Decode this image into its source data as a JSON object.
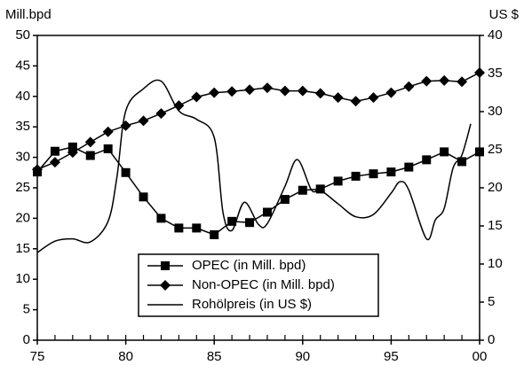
{
  "chart_data": {
    "type": "line",
    "y_label": "Mill.bpd",
    "y2_label": "US $",
    "x": [
      75,
      76,
      77,
      78,
      79,
      80,
      81,
      82,
      83,
      84,
      85,
      86,
      87,
      88,
      89,
      90,
      91,
      92,
      93,
      94,
      95,
      96,
      97,
      98,
      99,
      100
    ],
    "xlim": [
      75,
      100
    ],
    "xticks": [
      75,
      80,
      85,
      90,
      95,
      {
        "value": 100,
        "label": "00"
      }
    ],
    "ylim": [
      0,
      50
    ],
    "yticks": [
      0,
      5,
      10,
      15,
      20,
      25,
      30,
      35,
      40,
      45,
      50
    ],
    "y2lim": [
      0,
      40
    ],
    "y2ticks": [
      0,
      5,
      10,
      15,
      20,
      25,
      30,
      35,
      40
    ],
    "legend": "bottom-center",
    "series": [
      {
        "name": "OPEC (in Mill. bpd)",
        "color": "#000000",
        "marker": "square",
        "values": [
          27.6,
          31,
          31.7,
          30.3,
          31.4,
          27.5,
          23.5,
          20,
          18.4,
          18.4,
          17.3,
          19.5,
          19.3,
          21,
          23.1,
          24.6,
          24.8,
          26.1,
          26.9,
          27.3,
          27.6,
          28.4,
          29.6,
          30.9,
          29.3,
          30.9
        ]
      },
      {
        "name": "Non-OPEC (in Mill. bpd)",
        "color": "#000000",
        "marker": "diamond",
        "values": [
          28,
          29.2,
          30.8,
          32.5,
          34.2,
          35.2,
          36,
          37.2,
          38.5,
          39.9,
          40.6,
          40.8,
          41.1,
          41.4,
          40.9,
          40.9,
          40.5,
          39.8,
          39.2,
          39.8,
          40.6,
          41.6,
          42.5,
          42.6,
          42.4,
          43.9
        ]
      },
      {
        "name": "Rohölpreis (in US $)",
        "color": "#000000",
        "marker": "none",
        "axis": "y2",
        "x": [
          75,
          76,
          77,
          78,
          79,
          79.5,
          80,
          81,
          82,
          83,
          84,
          85,
          85.5,
          86,
          86.7,
          87.5,
          88,
          89,
          89.7,
          90.5,
          91,
          92,
          93,
          94,
          95,
          95.5,
          96,
          97,
          97.5,
          98,
          98.5,
          99,
          99.5
        ],
        "values": [
          11.5,
          13,
          13.3,
          12.9,
          15.6,
          21.4,
          30.1,
          33,
          34,
          30.1,
          29,
          26.6,
          16.7,
          14.4,
          18.1,
          15.2,
          15.3,
          20.2,
          23.7,
          19.7,
          19.7,
          17.9,
          16.2,
          16.5,
          19.3,
          20.8,
          19.7,
          13.3,
          15.8,
          17.3,
          22.6,
          24.3,
          28.4
        ]
      }
    ]
  }
}
